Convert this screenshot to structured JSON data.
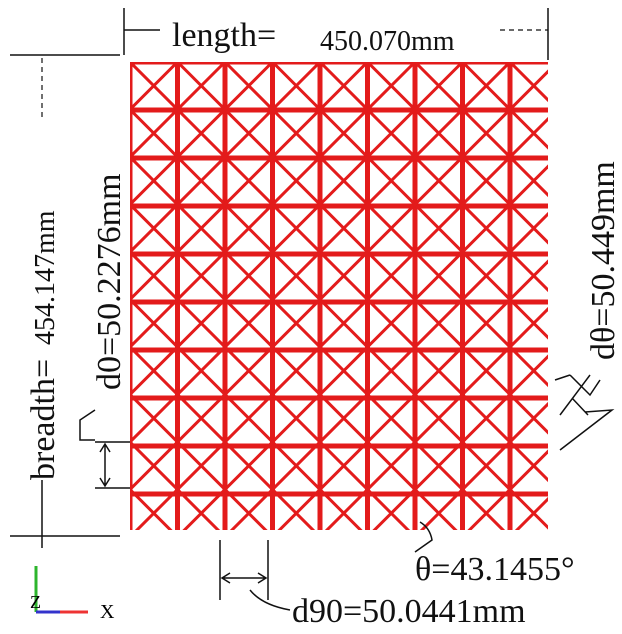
{
  "length": {
    "label": "length=",
    "value": "450.070mm"
  },
  "breadth": {
    "label": "breadth=",
    "value": "454.147mm"
  },
  "d0": "d0=50.2276mm",
  "dtheta": "dθ=50.449mm",
  "theta": "θ=43.1455°",
  "d90": "d90=50.0441mm",
  "axes": {
    "z": "Z",
    "x": "X"
  }
}
